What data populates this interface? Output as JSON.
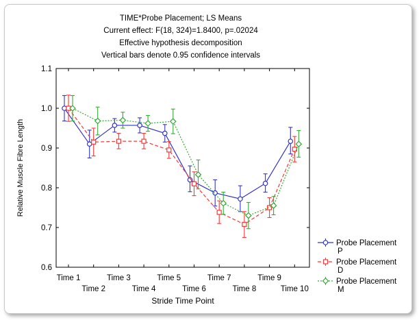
{
  "chart_data": {
    "type": "line",
    "title_lines": [
      "TIME*Probe Placement; LS Means",
      "Current effect: F(18, 324)=1.8400, p=.02024",
      "Effective hypothesis decomposition",
      "Vertical bars denote 0.95 confidence intervals"
    ],
    "xlabel": "Stride Time Point",
    "ylabel": "Relative Muscle Fibre Length",
    "categories": [
      "Time 1",
      "Time 2",
      "Time 3",
      "Time 4",
      "Time 5",
      "Time 6",
      "Time 7",
      "Time 8",
      "Time 9",
      "Time 10"
    ],
    "ylim": [
      0.6,
      1.1
    ],
    "yticks": [
      0.6,
      0.7,
      0.8,
      0.9,
      1.0,
      1.1
    ],
    "ytick_labels": [
      "0.6",
      "0.7",
      "0.8",
      "0.9",
      "1.0",
      "1.1"
    ],
    "grid": false,
    "legend_placement": "right",
    "legend_title": "Probe Placement",
    "series": [
      {
        "name": "P",
        "color": "#3333cc",
        "dash": "solid",
        "marker": "circle",
        "values": [
          1.0,
          0.91,
          0.957,
          0.957,
          0.937,
          0.82,
          0.787,
          0.772,
          0.811,
          0.917
        ],
        "lower": [
          0.968,
          0.875,
          0.94,
          0.938,
          0.915,
          0.79,
          0.754,
          0.74,
          0.789,
          0.885
        ],
        "upper": [
          1.032,
          0.945,
          0.974,
          0.976,
          0.959,
          0.855,
          0.82,
          0.805,
          0.835,
          0.952
        ]
      },
      {
        "name": "D",
        "color": "#ff3333",
        "dash": "dashed",
        "marker": "square",
        "values": [
          1.0,
          0.915,
          0.917,
          0.917,
          0.895,
          0.81,
          0.738,
          0.708,
          0.75,
          0.897
        ],
        "lower": [
          0.967,
          0.88,
          0.898,
          0.898,
          0.874,
          0.78,
          0.71,
          0.675,
          0.725,
          0.865
        ],
        "upper": [
          1.033,
          0.95,
          0.937,
          0.937,
          0.916,
          0.84,
          0.767,
          0.74,
          0.775,
          0.929
        ]
      },
      {
        "name": "M",
        "color": "#33aa33",
        "dash": "dotted",
        "marker": "diamond",
        "values": [
          1.0,
          0.968,
          0.97,
          0.962,
          0.967,
          0.833,
          0.761,
          0.73,
          0.755,
          0.91
        ],
        "lower": [
          0.968,
          0.933,
          0.95,
          0.942,
          0.936,
          0.797,
          0.733,
          0.697,
          0.732,
          0.877
        ],
        "upper": [
          1.032,
          1.003,
          0.99,
          0.982,
          0.998,
          0.87,
          0.789,
          0.763,
          0.778,
          0.944
        ]
      }
    ]
  }
}
